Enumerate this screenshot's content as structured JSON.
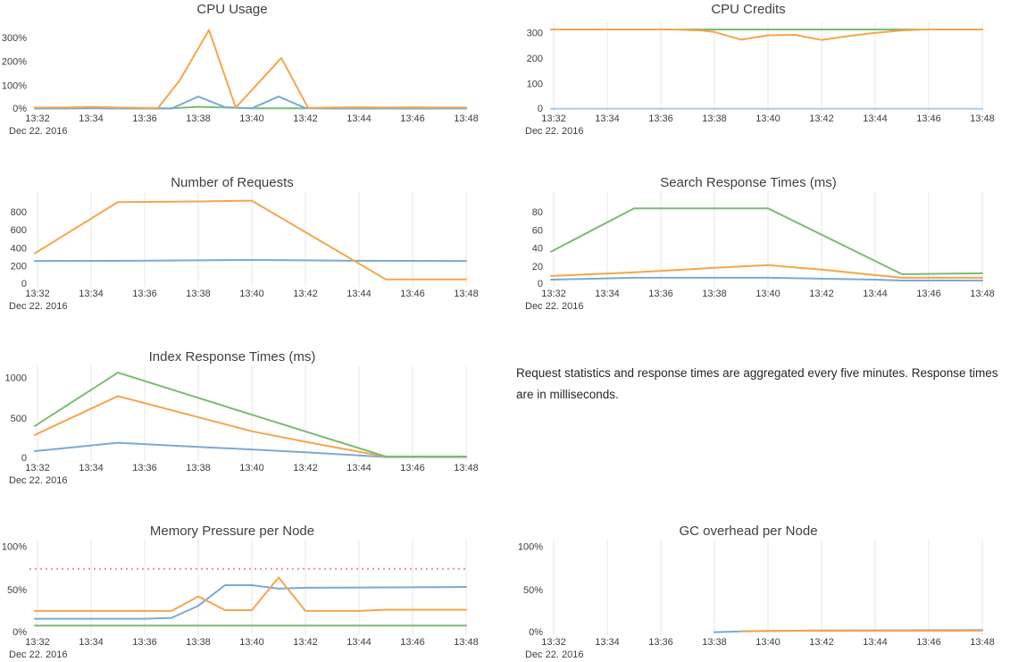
{
  "note": {
    "text": "Request statistics and response times are aggregated every five minutes. Response times are in milliseconds."
  },
  "colors": {
    "background": "#ffffff",
    "gridline": "#e7e7e7",
    "axis_text": "#3d3d3d",
    "title_text": "#3f3f3f",
    "note_text": "#262626",
    "threshold_red": "#ee8d8b",
    "series_blue": "#7aa9d6",
    "series_orange": "#f5a54b",
    "series_green": "#7bbb72"
  },
  "chart_data": [
    {
      "type": "line",
      "title": "CPU Usage",
      "date_label": "Dec 22. 2016",
      "x_tick_labels": [
        "13:32",
        "13:34",
        "13:36",
        "13:38",
        "13:40",
        "13:42",
        "13:44",
        "13:46",
        "13:48"
      ],
      "ylim": [
        0,
        363
      ],
      "y_ticks": [
        {
          "value": 0,
          "label": "0%"
        },
        {
          "value": 100,
          "label": "100%"
        },
        {
          "value": 200,
          "label": "200%"
        },
        {
          "value": 300,
          "label": "300%"
        }
      ],
      "grid": false,
      "series": [
        {
          "name": "green",
          "color": "#7bbb72",
          "points": [
            [
              31.9,
              3
            ],
            [
              34,
              4
            ],
            [
              36,
              3
            ],
            [
              37,
              3
            ],
            [
              38,
              9
            ],
            [
              39,
              6
            ],
            [
              40,
              3
            ],
            [
              42,
              3
            ],
            [
              44,
              3
            ],
            [
              46,
              3
            ],
            [
              48,
              3
            ]
          ]
        },
        {
          "name": "blue",
          "color": "#7aa9d6",
          "points": [
            [
              31.9,
              2
            ],
            [
              33,
              2
            ],
            [
              34,
              3
            ],
            [
              35,
              2
            ],
            [
              36,
              2
            ],
            [
              37,
              2
            ],
            [
              38,
              52
            ],
            [
              39,
              8
            ],
            [
              40,
              3
            ],
            [
              41,
              52
            ],
            [
              42,
              4
            ],
            [
              43,
              2
            ],
            [
              44,
              2
            ],
            [
              45,
              2
            ],
            [
              46,
              2
            ],
            [
              47,
              2
            ],
            [
              48,
              2
            ]
          ]
        },
        {
          "name": "orange",
          "color": "#f5a54b",
          "points": [
            [
              31.9,
              6
            ],
            [
              33,
              6
            ],
            [
              34,
              9
            ],
            [
              35,
              6
            ],
            [
              36,
              5
            ],
            [
              36.5,
              4
            ],
            [
              37.3,
              119
            ],
            [
              38.4,
              331
            ],
            [
              39.4,
              6
            ],
            [
              41.1,
              214
            ],
            [
              42.1,
              5
            ],
            [
              43,
              6
            ],
            [
              44,
              7
            ],
            [
              45,
              6
            ],
            [
              46,
              7
            ],
            [
              47,
              6
            ],
            [
              48,
              6
            ]
          ]
        }
      ]
    },
    {
      "type": "line",
      "title": "CPU Credits",
      "date_label": "Dec 22. 2016",
      "x_tick_labels": [
        "13:32",
        "13:34",
        "13:36",
        "13:38",
        "13:40",
        "13:42",
        "13:44",
        "13:46",
        "13:48"
      ],
      "ylim": [
        0,
        340
      ],
      "y_ticks": [
        {
          "value": 0,
          "label": "0"
        },
        {
          "value": 100,
          "label": "100"
        },
        {
          "value": 200,
          "label": "200"
        },
        {
          "value": 300,
          "label": "300"
        }
      ],
      "grid": true,
      "series": [
        {
          "name": "blue",
          "color": "#a9cbe8",
          "points": [
            [
              31.9,
              1
            ],
            [
              48,
              1
            ]
          ]
        },
        {
          "name": "green",
          "color": "#7bbb72",
          "points": [
            [
              31.9,
              312
            ],
            [
              48,
              312
            ]
          ]
        },
        {
          "name": "orange",
          "color": "#f5a54b",
          "points": [
            [
              31.9,
              312
            ],
            [
              36.5,
              312
            ],
            [
              37.5,
              308
            ],
            [
              38,
              302
            ],
            [
              39,
              272
            ],
            [
              40,
              289
            ],
            [
              41,
              291
            ],
            [
              42,
              271
            ],
            [
              43,
              286
            ],
            [
              44,
              299
            ],
            [
              45,
              308
            ],
            [
              45.8,
              312
            ],
            [
              48,
              312
            ]
          ]
        }
      ]
    },
    {
      "type": "line",
      "title": "Number of Requests",
      "date_label": "Dec 22. 2016",
      "x_tick_labels": [
        "13:32",
        "13:34",
        "13:36",
        "13:38",
        "13:40",
        "13:42",
        "13:44",
        "13:46",
        "13:48"
      ],
      "ylim": [
        0,
        1025
      ],
      "y_ticks": [
        {
          "value": 0,
          "label": "0"
        },
        {
          "value": 200,
          "label": "200"
        },
        {
          "value": 400,
          "label": "400"
        },
        {
          "value": 600,
          "label": "600"
        },
        {
          "value": 800,
          "label": "800"
        }
      ],
      "grid": true,
      "series": [
        {
          "name": "blue",
          "color": "#7aa9d6",
          "points": [
            [
              31.9,
              255
            ],
            [
              35,
              256
            ],
            [
              38,
              262
            ],
            [
              40,
              266
            ],
            [
              42,
              262
            ],
            [
              44,
              257
            ],
            [
              48,
              255
            ]
          ]
        },
        {
          "name": "orange",
          "color": "#f5a54b",
          "points": [
            [
              31.9,
              340
            ],
            [
              35,
              905
            ],
            [
              38,
              912
            ],
            [
              40,
              921
            ],
            [
              45,
              52
            ],
            [
              48,
              52
            ]
          ]
        }
      ]
    },
    {
      "type": "line",
      "title": "Search Response Times (ms)",
      "date_label": "Dec 22. 2016",
      "x_tick_labels": [
        "13:32",
        "13:34",
        "13:36",
        "13:38",
        "13:40",
        "13:42",
        "13:44",
        "13:46",
        "13:48"
      ],
      "ylim": [
        0,
        103
      ],
      "y_ticks": [
        {
          "value": 0,
          "label": "0"
        },
        {
          "value": 20,
          "label": "20"
        },
        {
          "value": 40,
          "label": "40"
        },
        {
          "value": 60,
          "label": "60"
        },
        {
          "value": 80,
          "label": "80"
        }
      ],
      "grid": true,
      "series": [
        {
          "name": "blue",
          "color": "#7aa9d6",
          "points": [
            [
              31.9,
              5
            ],
            [
              35,
              7
            ],
            [
              40,
              7
            ],
            [
              44,
              5
            ],
            [
              45,
              4
            ],
            [
              48,
              4
            ]
          ]
        },
        {
          "name": "orange",
          "color": "#f5a54b",
          "points": [
            [
              31.9,
              9
            ],
            [
              35,
              13
            ],
            [
              38,
              18
            ],
            [
              40,
              21
            ],
            [
              42,
              16
            ],
            [
              44,
              10
            ],
            [
              45,
              7
            ],
            [
              48,
              7
            ]
          ]
        },
        {
          "name": "green",
          "color": "#7bbb72",
          "points": [
            [
              31.9,
              36
            ],
            [
              35,
              84
            ],
            [
              40,
              84
            ],
            [
              45,
              11
            ],
            [
              48,
              12
            ]
          ]
        }
      ]
    },
    {
      "type": "line",
      "title": "Index Response Times (ms)",
      "date_label": "Dec 22. 2016",
      "x_tick_labels": [
        "13:32",
        "13:34",
        "13:36",
        "13:38",
        "13:40",
        "13:42",
        "13:44",
        "13:46",
        "13:48"
      ],
      "ylim": [
        0,
        1150
      ],
      "y_ticks": [
        {
          "value": 0,
          "label": "0"
        },
        {
          "value": 500,
          "label": "500"
        },
        {
          "value": 1000,
          "label": "1000"
        }
      ],
      "grid": true,
      "series": [
        {
          "name": "blue",
          "color": "#7aa9d6",
          "points": [
            [
              31.9,
              88
            ],
            [
              35,
              192
            ],
            [
              38,
              140
            ],
            [
              40,
              110
            ],
            [
              42,
              75
            ],
            [
              44,
              35
            ],
            [
              45,
              15
            ],
            [
              48,
              15
            ]
          ]
        },
        {
          "name": "orange",
          "color": "#f5a54b",
          "points": [
            [
              31.9,
              290
            ],
            [
              35,
              770
            ],
            [
              40,
              335
            ],
            [
              42,
              205
            ],
            [
              45,
              20
            ],
            [
              48,
              20
            ]
          ]
        },
        {
          "name": "green",
          "color": "#7bbb72",
          "points": [
            [
              31.9,
              400
            ],
            [
              35,
              1060
            ],
            [
              40,
              540
            ],
            [
              45,
              22
            ],
            [
              48,
              22
            ]
          ]
        }
      ]
    },
    {
      "type": "line",
      "title": "Memory Pressure per Node",
      "date_label": "Dec 22. 2016",
      "x_tick_labels": [
        "13:32",
        "13:34",
        "13:36",
        "13:38",
        "13:40",
        "13:42",
        "13:44",
        "13:46",
        "13:48"
      ],
      "ylim": [
        0,
        108
      ],
      "y_ticks": [
        {
          "value": 0,
          "label": "0%"
        },
        {
          "value": 50,
          "label": "50%"
        },
        {
          "value": 100,
          "label": "100%"
        }
      ],
      "grid": true,
      "threshold": {
        "name": "memory-pressure-threshold",
        "value": 74,
        "style": "dashed",
        "color": "#ee8d8b"
      },
      "series": [
        {
          "name": "green",
          "color": "#7bbb72",
          "points": [
            [
              31.9,
              8
            ],
            [
              48,
              8
            ]
          ]
        },
        {
          "name": "blue",
          "color": "#7aa9d6",
          "points": [
            [
              31.9,
              16
            ],
            [
              36,
              16
            ],
            [
              37,
              17
            ],
            [
              38,
              31
            ],
            [
              39,
              55
            ],
            [
              40,
              55
            ],
            [
              41,
              51
            ],
            [
              42,
              52
            ],
            [
              48,
              53
            ]
          ]
        },
        {
          "name": "orange",
          "color": "#f5a54b",
          "points": [
            [
              31.9,
              25
            ],
            [
              37,
              25
            ],
            [
              38,
              42
            ],
            [
              39,
              26
            ],
            [
              40,
              26
            ],
            [
              41,
              64
            ],
            [
              42,
              25
            ],
            [
              44,
              25
            ],
            [
              45,
              26.5
            ],
            [
              48,
              26.5
            ]
          ]
        }
      ]
    },
    {
      "type": "line",
      "title": "GC overhead per Node",
      "date_label": "Dec 22. 2016",
      "x_tick_labels": [
        "13:32",
        "13:34",
        "13:36",
        "13:38",
        "13:40",
        "13:42",
        "13:44",
        "13:46",
        "13:48"
      ],
      "ylim": [
        0,
        108
      ],
      "y_ticks": [
        {
          "value": 0,
          "label": "0%"
        },
        {
          "value": 50,
          "label": "50%"
        },
        {
          "value": 100,
          "label": "100%"
        }
      ],
      "grid": true,
      "series": [
        {
          "name": "blue",
          "color": "#7aa9d6",
          "points": [
            [
              38,
              0.4
            ],
            [
              39,
              1.2
            ],
            [
              40,
              1.8
            ],
            [
              42,
              2.4
            ],
            [
              48,
              2.8
            ]
          ]
        },
        {
          "name": "orange",
          "color": "#f5a54b",
          "points": [
            [
              39,
              1.6
            ],
            [
              40,
              1.9
            ],
            [
              44,
              2.1
            ],
            [
              48,
              2.2
            ]
          ]
        }
      ]
    }
  ]
}
